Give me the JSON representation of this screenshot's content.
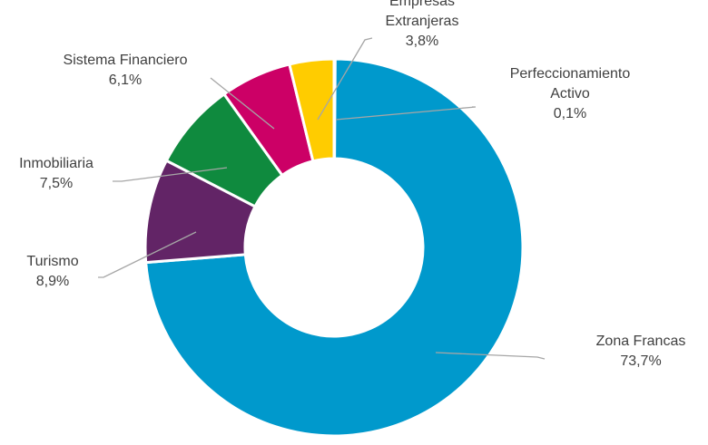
{
  "chart_data": {
    "type": "pie",
    "variant": "donut",
    "title": "",
    "categories": [
      "Perfeccionamiento Activo",
      "Zona Francas",
      "Turismo",
      "Inmobiliaria",
      "Sistema Financiero",
      "Empresas Extranjeras"
    ],
    "values": [
      0.1,
      73.7,
      8.9,
      7.5,
      6.1,
      3.8
    ],
    "value_labels": [
      "0,1%",
      "73,7%",
      "8,9%",
      "7,5%",
      "6,1%",
      "3,8%"
    ],
    "label_lines": [
      [
        "Perfeccionamiento",
        "Activo"
      ],
      [
        "Zona Francas"
      ],
      [
        "Turismo"
      ],
      [
        "Inmobiliaria"
      ],
      [
        "Sistema Financiero"
      ],
      [
        "Empresas",
        "Extranjeras"
      ]
    ],
    "colors": [
      "#0099cc",
      "#0099cc",
      "#622466",
      "#0f8a3e",
      "#cc0066",
      "#ffcc00"
    ],
    "start_angle_deg": 0,
    "direction": "clockwise",
    "legend": "none",
    "data_labels": "outside with leader lines"
  }
}
